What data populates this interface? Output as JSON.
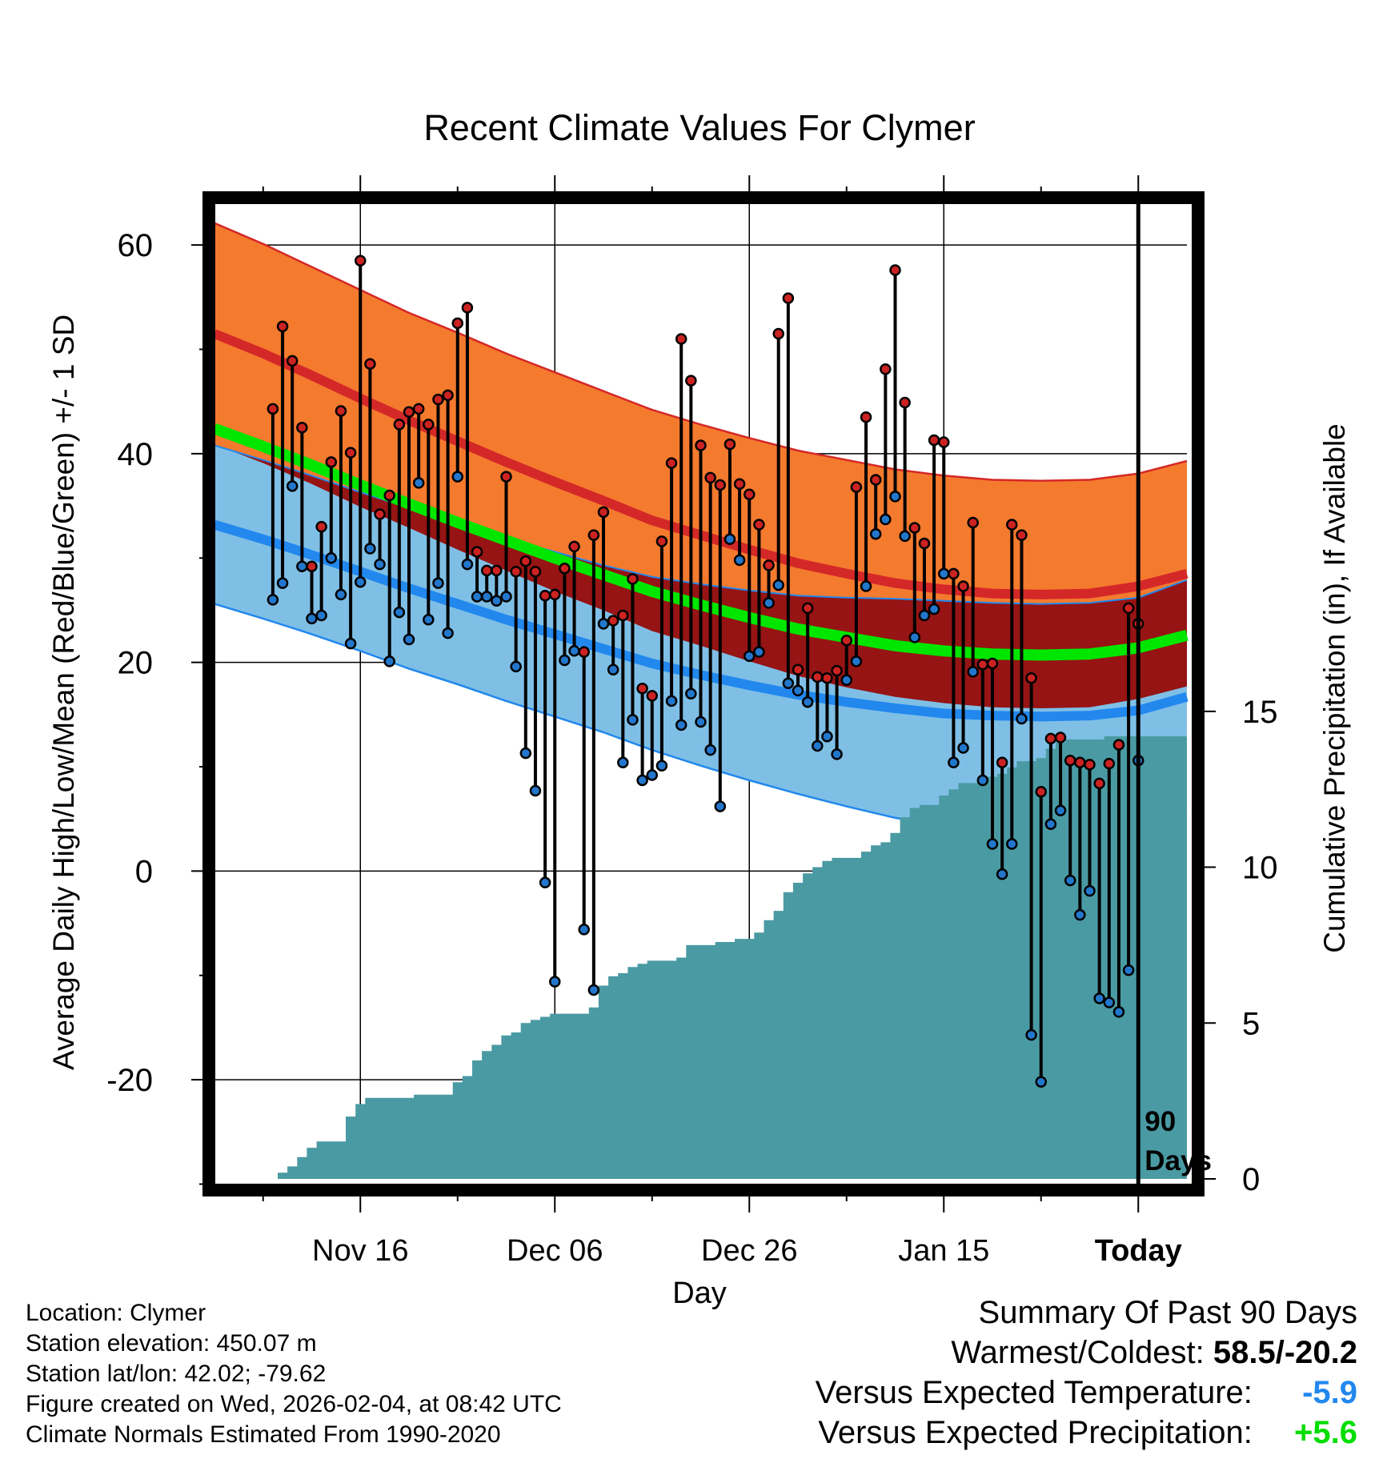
{
  "chart_data": {
    "type": "line",
    "title": "Recent Climate Values For Clymer",
    "xlabel": "Day",
    "ylabel": "Average Daily High/Low/Mean (Red/Blue/Green) +/- 1 SD",
    "y2label": "Cumulative Precipitation (in), If Available",
    "ylim": [
      -29.5,
      64
    ],
    "y2lim": [
      0,
      31.3
    ],
    "xlim": [
      -95,
      5
    ],
    "x_ticks": [
      {
        "day": -80,
        "label": "Nov 16"
      },
      {
        "day": -60,
        "label": "Dec 06"
      },
      {
        "day": -40,
        "label": "Dec 26"
      },
      {
        "day": -20,
        "label": "Jan 15"
      },
      {
        "day": 0,
        "label": "Today"
      }
    ],
    "y_ticks": [
      {
        "value": 60,
        "label": "60"
      },
      {
        "value": 40,
        "label": "40"
      },
      {
        "value": 20,
        "label": "20"
      },
      {
        "value": 0,
        "label": "0"
      },
      {
        "value": -20,
        "label": "-20"
      }
    ],
    "y2_ticks": [
      {
        "value": 0,
        "label": "0"
      },
      {
        "value": 5,
        "label": "5"
      },
      {
        "value": 10,
        "label": "10"
      },
      {
        "value": 15,
        "label": "15"
      }
    ],
    "today_marker": {
      "day": 0,
      "label_line1": "90",
      "label_line2": "Days"
    },
    "normals": {
      "days": [
        -95,
        -90,
        -85,
        -80,
        -75,
        -70,
        -65,
        -60,
        -55,
        -50,
        -45,
        -40,
        -35,
        -30,
        -25,
        -20,
        -15,
        -10,
        -5,
        0,
        5
      ],
      "high_mean": [
        51.5,
        49.6,
        47.5,
        45.3,
        43.2,
        41.2,
        39.2,
        37.3,
        35.5,
        33.6,
        32.2,
        30.8,
        29.5,
        28.5,
        27.6,
        27.0,
        26.6,
        26.5,
        26.6,
        27.3,
        28.5
      ],
      "high_sd": [
        10.6,
        10.5,
        10.4,
        10.4,
        10.3,
        10.4,
        10.4,
        10.5,
        10.5,
        10.6,
        10.6,
        10.7,
        10.8,
        10.9,
        10.9,
        10.9,
        10.9,
        10.9,
        10.9,
        10.8,
        10.8
      ],
      "low_mean": [
        33.2,
        31.8,
        30.3,
        28.7,
        27.1,
        25.6,
        24.1,
        22.7,
        21.3,
        19.9,
        18.8,
        17.8,
        16.9,
        16.2,
        15.6,
        15.1,
        14.9,
        14.8,
        14.9,
        15.4,
        16.7
      ],
      "low_sd": [
        7.6,
        7.6,
        7.6,
        7.6,
        7.7,
        7.7,
        7.8,
        7.9,
        8.0,
        8.3,
        8.7,
        9.1,
        9.5,
        10.0,
        10.5,
        10.8,
        10.8,
        10.8,
        10.8,
        10.8,
        11.2
      ],
      "avg_mean": [
        42.4,
        40.7,
        38.9,
        37.0,
        35.2,
        33.4,
        31.7,
        30.0,
        28.4,
        26.8,
        25.5,
        24.3,
        23.2,
        22.4,
        21.6,
        21.1,
        20.8,
        20.7,
        20.8,
        21.4,
        22.6
      ]
    },
    "series": [
      {
        "name": "Daily High",
        "color": "#cc2222",
        "values": [
          44.3,
          52.2,
          48.9,
          42.5,
          29.2,
          33.0,
          39.2,
          44.1,
          40.1,
          58.5,
          48.6,
          34.2,
          36.0,
          42.8,
          44.0,
          44.3,
          42.8,
          45.2,
          45.6,
          52.5,
          54.0,
          30.6,
          28.8,
          28.8,
          37.8,
          28.7,
          29.7,
          28.7,
          26.4,
          26.5,
          29.0,
          31.1,
          21.0,
          32.2,
          34.4,
          24.0,
          24.5,
          28.0,
          17.5,
          16.8,
          31.6,
          39.1,
          51.0,
          47.0,
          40.8,
          37.7,
          37.0,
          40.9,
          37.1,
          36.1,
          33.2,
          29.3,
          51.5,
          54.9,
          19.3,
          25.2,
          18.6,
          18.5,
          19.2,
          22.1,
          36.8,
          43.5,
          37.5,
          48.1,
          57.6,
          44.9,
          32.9,
          31.4,
          41.3,
          41.1,
          28.5,
          27.3,
          33.4,
          19.8,
          19.9,
          10.4,
          33.2,
          32.2,
          18.5,
          7.6,
          12.7,
          12.8,
          10.6,
          10.4,
          10.2,
          8.4,
          10.3,
          12.1,
          25.2,
          23.7
        ]
      },
      {
        "name": "Daily Low",
        "color": "#2277cc",
        "values": [
          26.0,
          27.6,
          36.9,
          29.2,
          24.2,
          24.5,
          30.0,
          26.5,
          21.8,
          27.7,
          30.9,
          29.4,
          20.1,
          24.8,
          22.2,
          37.2,
          24.1,
          27.6,
          22.8,
          37.8,
          29.4,
          26.3,
          26.3,
          25.9,
          26.3,
          19.6,
          11.3,
          7.7,
          -1.1,
          -10.6,
          20.2,
          21.1,
          -5.6,
          -11.4,
          23.7,
          19.3,
          10.4,
          14.5,
          8.7,
          9.2,
          10.1,
          16.3,
          14.0,
          17.0,
          14.3,
          11.6,
          6.2,
          31.8,
          29.8,
          20.6,
          21.0,
          25.7,
          27.4,
          18.0,
          17.3,
          16.2,
          12.0,
          12.9,
          11.2,
          18.3,
          20.1,
          27.3,
          32.3,
          33.7,
          35.9,
          32.1,
          22.4,
          24.5,
          25.1,
          28.5,
          10.4,
          11.8,
          19.1,
          8.7,
          2.6,
          -0.3,
          2.6,
          14.6,
          -15.7,
          -20.2,
          4.5,
          5.8,
          -0.9,
          -4.2,
          -1.9,
          -12.2,
          -12.6,
          -13.5,
          -9.5,
          10.6
        ]
      }
    ],
    "precipitation": {
      "name": "Cumulative Precipitation",
      "color": "#4a9aa3",
      "values": [
        0.0,
        0.2,
        0.4,
        0.7,
        1.0,
        1.2,
        1.2,
        1.2,
        2.0,
        2.4,
        2.6,
        2.6,
        2.6,
        2.6,
        2.6,
        2.7,
        2.7,
        2.7,
        2.7,
        3.1,
        3.3,
        3.8,
        4.1,
        4.3,
        4.6,
        4.7,
        5.0,
        5.1,
        5.2,
        5.3,
        5.3,
        5.3,
        5.3,
        5.5,
        6.2,
        6.5,
        6.6,
        6.8,
        6.9,
        7.0,
        7.0,
        7.0,
        7.1,
        7.5,
        7.5,
        7.5,
        7.6,
        7.6,
        7.7,
        7.7,
        7.9,
        8.3,
        8.6,
        9.2,
        9.5,
        9.8,
        10.0,
        10.2,
        10.3,
        10.3,
        10.3,
        10.5,
        10.7,
        10.8,
        11.1,
        11.6,
        11.9,
        12.0,
        12.0,
        12.3,
        12.5,
        12.7,
        12.7,
        12.8,
        12.9,
        13.0,
        13.2,
        13.4,
        13.4,
        13.5,
        13.8,
        14.0,
        14.1,
        14.1,
        14.1,
        14.1,
        14.2,
        14.2,
        14.2,
        14.2
      ]
    },
    "colors": {
      "high_band": "#f47a2e",
      "high_mean_line": "#d42828",
      "avg_band": "#961414",
      "avg_mean_line": "#00e600",
      "low_band": "#7fbfe6",
      "low_mean_line": "#2288ee",
      "today_line": "#000000"
    }
  },
  "footer": {
    "location": "Location: Clymer",
    "elevation": "Station elevation: 450.07 m",
    "latlon": "Station lat/lon: 42.02; -79.62",
    "created": "Figure created on Wed, 2026-02-04, at 08:42 UTC",
    "normals": "Climate Normals Estimated From 1990-2020"
  },
  "summary": {
    "title": "Summary Of Past 90 Days",
    "warmest_label": "Warmest/Coldest:",
    "warmest_value": "58.5/-20.2",
    "temp_label": "Versus Expected Temperature:",
    "temp_value": "-5.9",
    "temp_color": "#2288ee",
    "precip_label": "Versus Expected Precipitation:",
    "precip_value": "+5.6",
    "precip_color": "#00dd00"
  }
}
